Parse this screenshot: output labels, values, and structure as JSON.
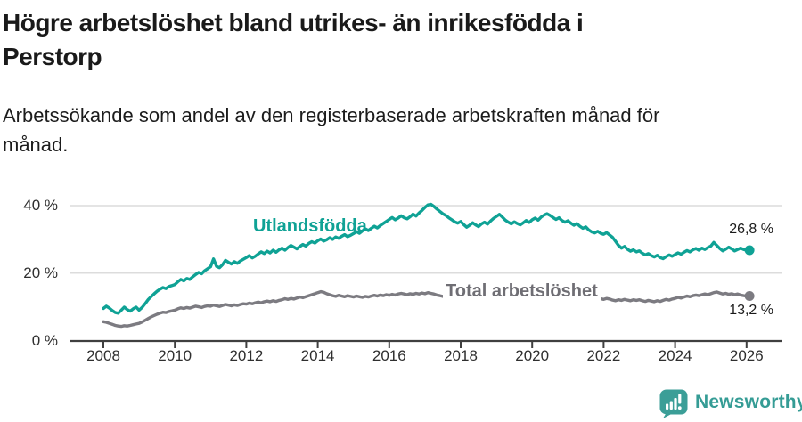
{
  "header": {
    "title_line1": "Högre arbetslöshet bland utrikes- än inrikesfödda i",
    "title_line2": "Perstorp",
    "subtitle_line1": "Arbetssökande som andel av den registerbaserade arbetskraften månad för",
    "subtitle_line2": "månad."
  },
  "chart_data": {
    "type": "line",
    "title": "Högre arbetslöshet bland utrikes- än inrikesfödda i Perstorp",
    "subtitle": "Arbetssökande som andel av den registerbaserade arbetskraften månad för månad.",
    "x_start_year": 2008,
    "months_per_point": 1,
    "x_ticks": [
      2008,
      2010,
      2012,
      2014,
      2016,
      2018,
      2020,
      2022,
      2024,
      2026
    ],
    "y_ticks": [
      {
        "value": 0,
        "label": "0 %"
      },
      {
        "value": 20,
        "label": "20 %"
      },
      {
        "value": 40,
        "label": "40 %"
      }
    ],
    "ylim": [
      0,
      43
    ],
    "grid": "horizontal-only",
    "colors": {
      "utlandsfodda": "#0fa295",
      "total": "#7c7b81",
      "total_label": "#6f6e74",
      "gridline": "#dcdcdc",
      "axis": "#3f3f3f",
      "annotation": "#1a1a1a"
    },
    "series": [
      {
        "name": "Utlandsfödda",
        "end_label": "26,8 %",
        "end_value": 26.8,
        "values": [
          9.5,
          10.2,
          9.6,
          8.9,
          8.3,
          8.1,
          9.0,
          9.9,
          9.2,
          8.7,
          9.4,
          9.9,
          9.0,
          9.8,
          10.9,
          12.1,
          13.0,
          13.8,
          14.6,
          15.2,
          15.7,
          15.4,
          16.0,
          16.3,
          16.6,
          17.4,
          18.1,
          17.7,
          18.4,
          18.1,
          18.9,
          19.6,
          20.2,
          19.8,
          20.7,
          21.3,
          21.9,
          24.2,
          22.0,
          21.6,
          22.5,
          23.8,
          23.2,
          22.7,
          23.4,
          22.9,
          23.6,
          24.1,
          24.6,
          25.2,
          24.5,
          25.0,
          25.7,
          26.3,
          25.8,
          26.5,
          26.0,
          26.8,
          26.2,
          26.9,
          27.4,
          26.8,
          27.6,
          28.2,
          27.7,
          27.2,
          27.9,
          28.5,
          28.0,
          28.8,
          29.3,
          28.9,
          29.6,
          30.1,
          29.5,
          29.9,
          30.5,
          30.0,
          30.7,
          30.3,
          30.9,
          31.4,
          30.8,
          31.2,
          31.7,
          32.3,
          31.8,
          32.5,
          33.1,
          32.6,
          33.3,
          33.9,
          33.4,
          34.1,
          34.7,
          35.3,
          35.9,
          36.5,
          35.8,
          36.3,
          37.0,
          36.4,
          36.1,
          36.7,
          37.5,
          36.9,
          37.8,
          38.6,
          39.5,
          40.2,
          40.4,
          39.8,
          39.0,
          38.3,
          37.6,
          37.1,
          36.4,
          35.8,
          35.2,
          34.8,
          35.3,
          34.4,
          33.6,
          34.2,
          34.9,
          34.3,
          33.8,
          34.6,
          35.1,
          34.5,
          35.4,
          36.2,
          36.8,
          37.4,
          36.6,
          35.7,
          35.1,
          34.6,
          35.2,
          34.7,
          34.3,
          34.9,
          35.6,
          35.0,
          35.8,
          36.3,
          35.7,
          36.6,
          37.2,
          37.6,
          37.1,
          36.5,
          35.9,
          36.4,
          35.6,
          35.1,
          35.5,
          34.8,
          34.2,
          34.7,
          33.9,
          33.3,
          33.7,
          32.8,
          32.2,
          31.9,
          32.4,
          31.8,
          31.5,
          32.0,
          31.3,
          30.6,
          29.4,
          28.2,
          27.4,
          27.9,
          27.1,
          26.5,
          26.9,
          26.3,
          26.6,
          25.9,
          25.4,
          25.8,
          25.2,
          24.8,
          25.3,
          24.6,
          24.3,
          24.9,
          25.4,
          25.0,
          25.5,
          26.0,
          25.6,
          26.2,
          26.7,
          26.3,
          26.9,
          27.3,
          26.8,
          27.4,
          27.0,
          27.6,
          28.0,
          29.1,
          28.2,
          27.3,
          26.6,
          27.1,
          27.7,
          27.2,
          26.6,
          27.0,
          27.4,
          27.0,
          26.8,
          26.8
        ]
      },
      {
        "name": "Total arbetslöshet",
        "end_label": "13,2 %",
        "end_value": 13.2,
        "values": [
          5.6,
          5.4,
          5.1,
          4.8,
          4.5,
          4.3,
          4.2,
          4.4,
          4.3,
          4.5,
          4.7,
          4.9,
          5.1,
          5.5,
          6.0,
          6.5,
          7.0,
          7.4,
          7.8,
          8.1,
          8.4,
          8.3,
          8.6,
          8.8,
          9.0,
          9.4,
          9.7,
          9.5,
          9.8,
          9.6,
          9.9,
          10.2,
          10.0,
          9.8,
          10.1,
          10.3,
          10.2,
          10.5,
          10.3,
          10.1,
          10.4,
          10.7,
          10.5,
          10.3,
          10.6,
          10.4,
          10.7,
          10.9,
          10.8,
          11.1,
          10.9,
          11.2,
          11.4,
          11.2,
          11.5,
          11.7,
          11.5,
          11.8,
          11.6,
          11.9,
          12.1,
          12.4,
          12.2,
          12.5,
          12.3,
          12.6,
          12.9,
          12.7,
          13.0,
          13.3,
          13.6,
          13.9,
          14.2,
          14.5,
          14.3,
          13.9,
          13.6,
          13.3,
          13.1,
          13.4,
          13.2,
          13.0,
          13.3,
          13.1,
          12.9,
          13.2,
          13.0,
          12.8,
          13.1,
          12.9,
          13.2,
          13.4,
          13.2,
          13.5,
          13.3,
          13.6,
          13.4,
          13.7,
          13.5,
          13.8,
          14.0,
          13.8,
          13.6,
          13.9,
          13.7,
          14.0,
          13.8,
          14.1,
          13.9,
          14.2,
          14.0,
          13.8,
          13.5,
          13.3,
          13.1,
          12.9,
          12.7,
          12.9,
          12.7,
          12.5,
          12.7,
          12.4,
          12.2,
          12.5,
          12.3,
          12.1,
          12.3,
          12.6,
          12.4,
          12.2,
          12.5,
          12.7,
          12.9,
          13.1,
          12.8,
          12.6,
          12.9,
          12.7,
          13.0,
          12.8,
          12.6,
          12.9,
          13.1,
          12.9,
          13.2,
          13.4,
          13.7,
          14.0,
          13.8,
          14.1,
          13.9,
          13.7,
          13.5,
          13.7,
          13.4,
          13.2,
          13.4,
          13.1,
          12.9,
          13.1,
          12.8,
          12.6,
          12.8,
          12.5,
          12.3,
          12.5,
          12.2,
          12.4,
          12.2,
          12.5,
          12.3,
          12.0,
          11.8,
          12.1,
          11.9,
          12.2,
          12.0,
          11.8,
          12.1,
          11.9,
          12.1,
          11.8,
          11.6,
          11.9,
          11.7,
          11.5,
          11.8,
          11.6,
          11.9,
          12.2,
          12.0,
          12.3,
          12.5,
          12.8,
          12.6,
          12.9,
          13.2,
          13.0,
          13.3,
          13.5,
          13.3,
          13.6,
          13.8,
          13.6,
          13.9,
          14.2,
          14.4,
          14.1,
          13.8,
          14.0,
          13.7,
          13.9,
          13.6,
          13.8,
          13.5,
          13.3,
          13.2,
          13.2
        ]
      }
    ]
  },
  "footer": {
    "brand": "Newsworthy",
    "brand_color": "#359c95"
  }
}
